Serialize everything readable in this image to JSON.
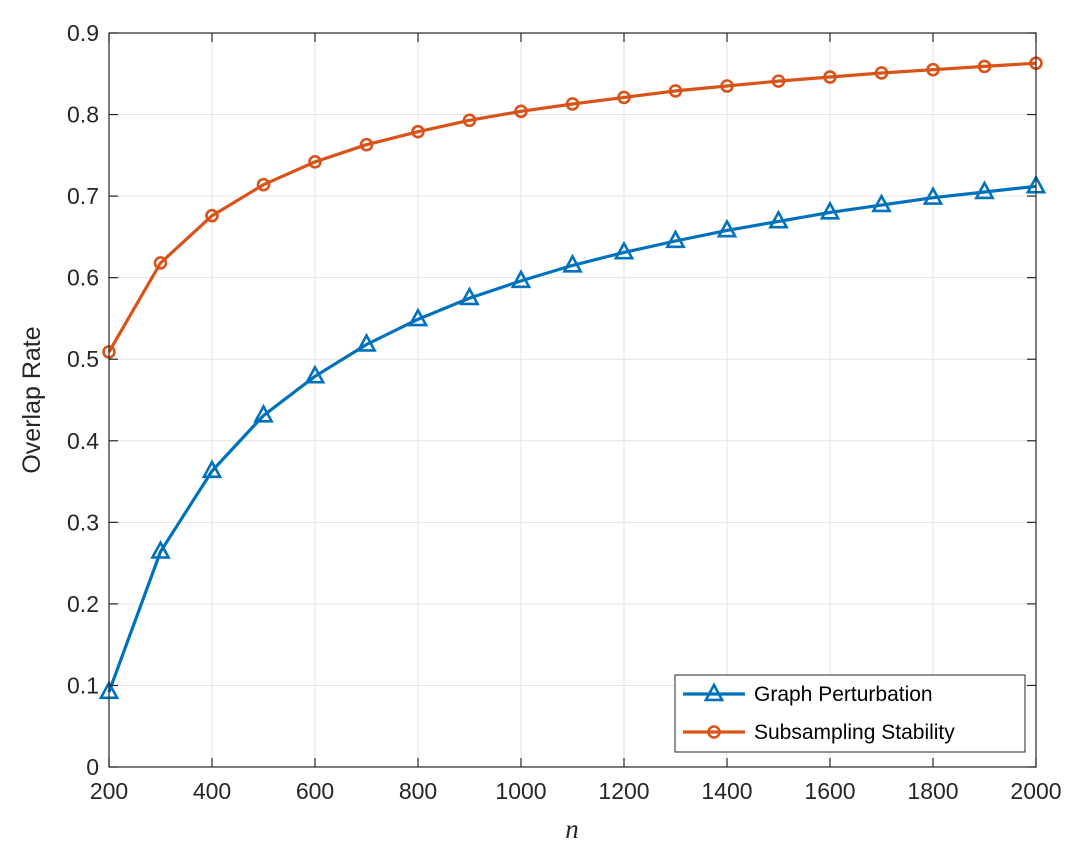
{
  "chart_data": {
    "type": "line",
    "xlabel": "n",
    "ylabel": "Overlap Rate",
    "xlim": [
      200,
      2000
    ],
    "ylim": [
      0,
      0.9
    ],
    "xticks": [
      200,
      400,
      600,
      800,
      1000,
      1200,
      1400,
      1600,
      1800,
      2000
    ],
    "xtick_labels": [
      "200",
      "400",
      "600",
      "800",
      "1000",
      "1200",
      "1400",
      "1600",
      "1800",
      "2000"
    ],
    "yticks": [
      0,
      0.1,
      0.2,
      0.3,
      0.4,
      0.5,
      0.6,
      0.7,
      0.8,
      0.9
    ],
    "ytick_labels": [
      "0",
      "0.1",
      "0.2",
      "0.3",
      "0.4",
      "0.5",
      "0.6",
      "0.7",
      "0.8",
      "0.9"
    ],
    "grid": true,
    "legend_position": "bottom-right",
    "x": [
      200,
      300,
      400,
      500,
      600,
      700,
      800,
      900,
      1000,
      1100,
      1200,
      1300,
      1400,
      1500,
      1600,
      1700,
      1800,
      1900,
      2000
    ],
    "series": [
      {
        "name": "Graph Perturbation",
        "color": "#0072bd",
        "marker": "triangle",
        "values": [
          0.092,
          0.264,
          0.363,
          0.431,
          0.479,
          0.518,
          0.549,
          0.575,
          0.596,
          0.615,
          0.631,
          0.645,
          0.658,
          0.669,
          0.68,
          0.689,
          0.698,
          0.705,
          0.712
        ]
      },
      {
        "name": "Subsampling Stability",
        "color": "#d95319",
        "marker": "circle",
        "values": [
          0.509,
          0.618,
          0.676,
          0.714,
          0.742,
          0.763,
          0.779,
          0.793,
          0.804,
          0.813,
          0.821,
          0.829,
          0.835,
          0.841,
          0.846,
          0.851,
          0.855,
          0.859,
          0.863
        ]
      }
    ]
  }
}
